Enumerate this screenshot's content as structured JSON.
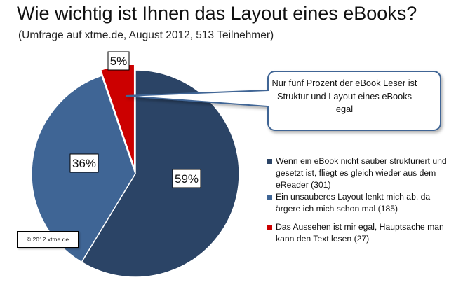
{
  "title": "Wie wichtig ist Ihnen das Layout eines eBooks?",
  "subtitle": "(Umfrage auf xtme.de, August 2012, 513 Teilnehmer)",
  "callout": "Nur fünf Prozent der eBook Leser ist Struktur und Layout eines eBooks egal",
  "copyright": "© 2012 xtme.de",
  "colors": {
    "dark_blue": "#2b4466",
    "mid_blue": "#3f6595",
    "red": "#cc0000"
  },
  "chart_data": {
    "type": "pie",
    "title": "Wie wichtig ist Ihnen das Layout eines eBooks?",
    "subtitle": "(Umfrage auf xtme.de, August 2012, 513 Teilnehmer)",
    "legend_position": "right",
    "slices": [
      {
        "label": "Wenn ein eBook nicht sauber strukturiert und gesetzt ist, fliegt es gleich wieder aus dem eReader (301)",
        "value": 301,
        "percent_label": "59%",
        "color": "#2b4466"
      },
      {
        "label": "Ein unsauberes Layout lenkt mich ab, da ärgere ich mich schon mal (185)",
        "value": 185,
        "percent_label": "36%",
        "color": "#3f6595"
      },
      {
        "label": "Das Aussehen ist mir egal, Hauptsache man kann den Text lesen (27)",
        "value": 27,
        "percent_label": "5%",
        "color": "#cc0000"
      }
    ]
  }
}
